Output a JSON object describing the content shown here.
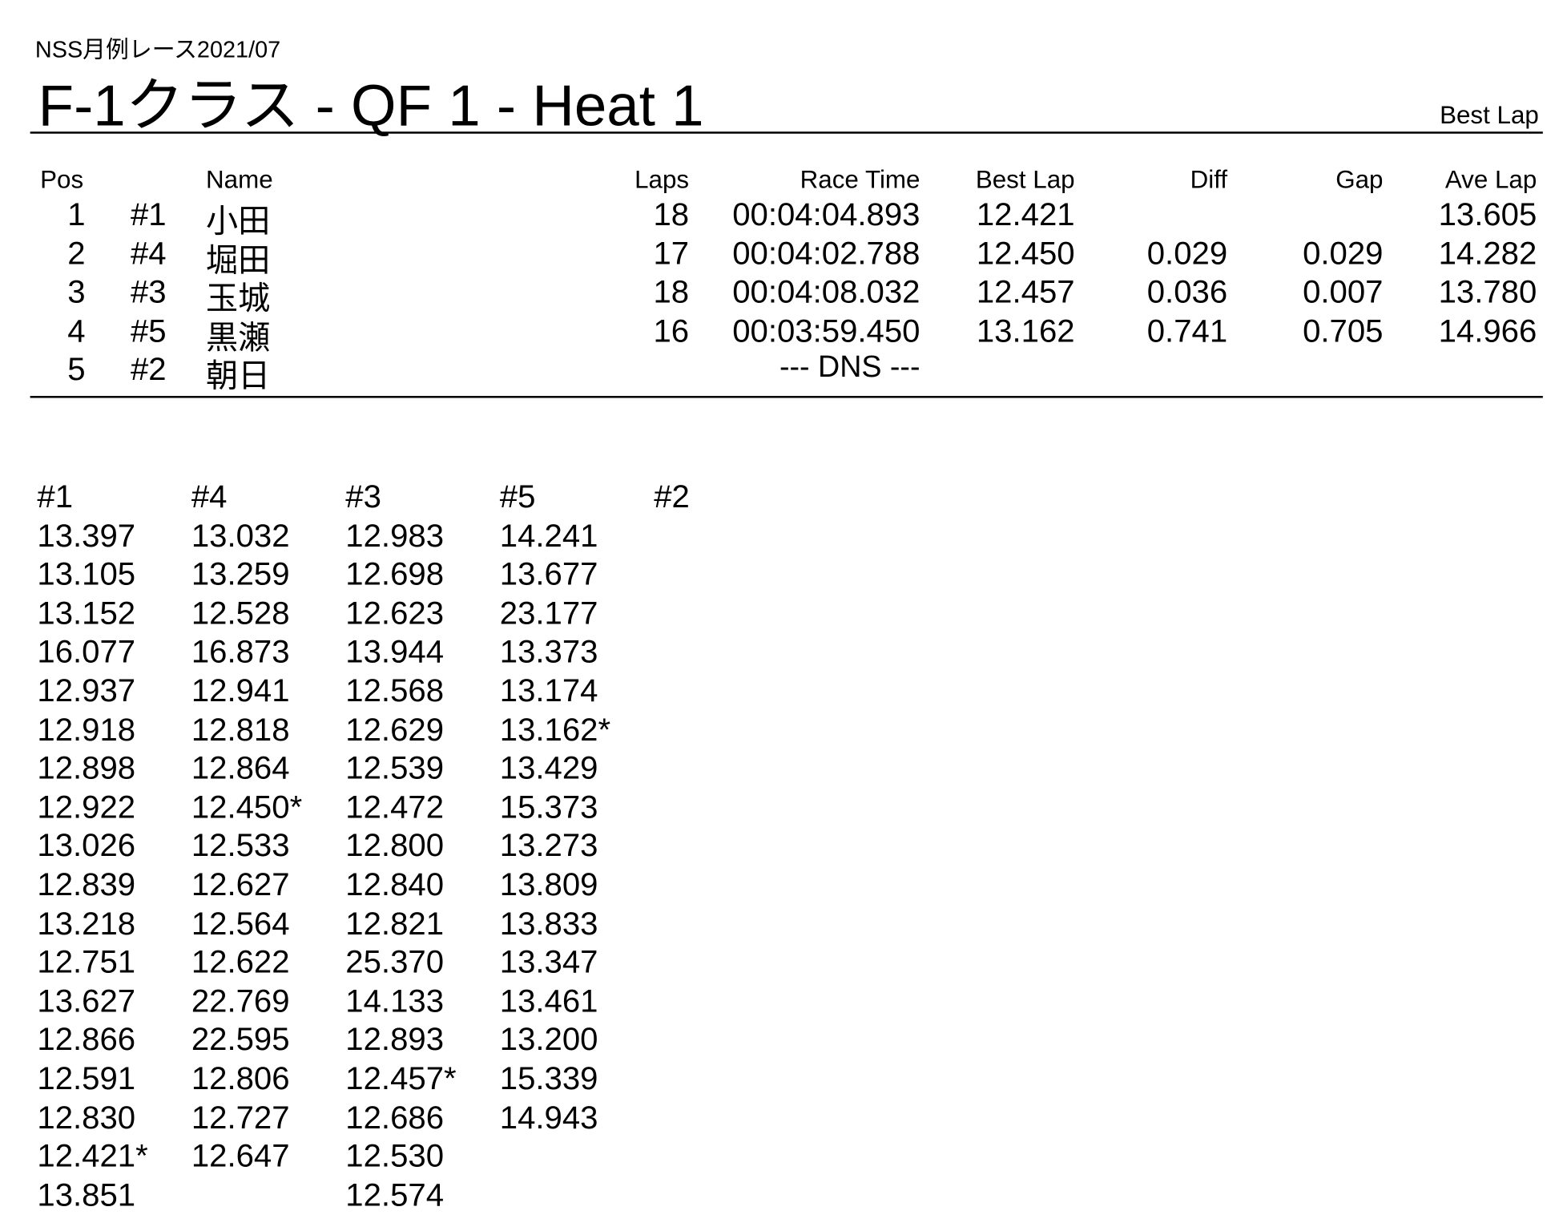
{
  "header": {
    "subtitle": "NSS月例レース2021/07",
    "title": "F-1クラス  -  QF 1  -  Heat 1",
    "sort_label": "Best Lap"
  },
  "results": {
    "columns": [
      "Pos",
      "",
      "Name",
      "Laps",
      "Race Time",
      "Best Lap",
      "Diff",
      "Gap",
      "Ave Lap"
    ],
    "rows": [
      {
        "pos": "1",
        "num": "#1",
        "name": "小田",
        "laps": "18",
        "race_time": "00:04:04.893",
        "best_lap": "12.421",
        "diff": "",
        "gap": "",
        "ave_lap": "13.605"
      },
      {
        "pos": "2",
        "num": "#4",
        "name": "堀田",
        "laps": "17",
        "race_time": "00:04:02.788",
        "best_lap": "12.450",
        "diff": "0.029",
        "gap": "0.029",
        "ave_lap": "14.282"
      },
      {
        "pos": "3",
        "num": "#3",
        "name": "玉城",
        "laps": "18",
        "race_time": "00:04:08.032",
        "best_lap": "12.457",
        "diff": "0.036",
        "gap": "0.007",
        "ave_lap": "13.780"
      },
      {
        "pos": "4",
        "num": "#5",
        "name": "黒瀬",
        "laps": "16",
        "race_time": "00:03:59.450",
        "best_lap": "13.162",
        "diff": "0.741",
        "gap": "0.705",
        "ave_lap": "14.966"
      },
      {
        "pos": "5",
        "num": "#2",
        "name": "朝日",
        "laps": "",
        "race_time": "--- DNS ---",
        "best_lap": "",
        "diff": "",
        "gap": "",
        "ave_lap": ""
      }
    ]
  },
  "lap_times": [
    {
      "car": "#1",
      "laps": [
        "13.397",
        "13.105",
        "13.152",
        "16.077",
        "12.937",
        "12.918",
        "12.898",
        "12.922",
        "13.026",
        "12.839",
        "13.218",
        "12.751",
        "13.627",
        "12.866",
        "12.591",
        "12.830",
        "12.421*",
        "13.851"
      ]
    },
    {
      "car": "#4",
      "laps": [
        "13.032",
        "13.259",
        "12.528",
        "16.873",
        "12.941",
        "12.818",
        "12.864",
        "12.450*",
        "12.533",
        "12.627",
        "12.564",
        "12.622",
        "22.769",
        "22.595",
        "12.806",
        "12.727",
        "12.647"
      ]
    },
    {
      "car": "#3",
      "laps": [
        "12.983",
        "12.698",
        "12.623",
        "13.944",
        "12.568",
        "12.629",
        "12.539",
        "12.472",
        "12.800",
        "12.840",
        "12.821",
        "25.370",
        "14.133",
        "12.893",
        "12.457*",
        "12.686",
        "12.530",
        "12.574"
      ]
    },
    {
      "car": "#5",
      "laps": [
        "14.241",
        "13.677",
        "23.177",
        "13.373",
        "13.174",
        "13.162*",
        "13.429",
        "15.373",
        "13.273",
        "13.809",
        "13.833",
        "13.347",
        "13.461",
        "13.200",
        "15.339",
        "14.943"
      ]
    },
    {
      "car": "#2",
      "laps": []
    }
  ]
}
